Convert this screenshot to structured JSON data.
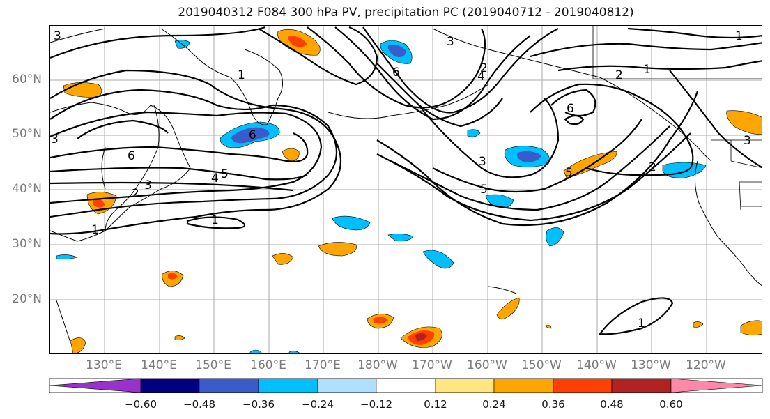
{
  "title": "2019040312 F084 300 hPa PV, precipitation PC (2019040712 - 2019040812)",
  "lat_labels": [
    "60°N",
    "50°N",
    "40°N",
    "30°N",
    "20°N"
  ],
  "lon_labels": [
    "130°E",
    "140°E",
    "150°E",
    "160°E",
    "170°E",
    "180°W",
    "170°W",
    "160°W",
    "150°W",
    "140°W",
    "130°W",
    "120°W"
  ],
  "colorbar": {
    "ticks": [
      "−0.60",
      "−0.48",
      "−0.36",
      "−0.24",
      "−0.12",
      "0.12",
      "0.24",
      "0.36",
      "0.48",
      "0.60"
    ],
    "colors": [
      "#9932cc",
      "#000080",
      "#3a5bcb",
      "#00bfff",
      "#b0e0ff",
      "#ffffff",
      "#ffe680",
      "#ffa500",
      "#ff4000",
      "#b22222",
      "#ff88aa"
    ]
  },
  "contour_labels": [
    "3",
    "1",
    "6",
    "4",
    "2",
    "3",
    "5",
    "1",
    "1",
    "6",
    "4",
    "2",
    "1",
    "3",
    "6",
    "3",
    "5",
    "2",
    "1",
    "5",
    "6",
    "3",
    "2",
    "3",
    "1"
  ]
}
